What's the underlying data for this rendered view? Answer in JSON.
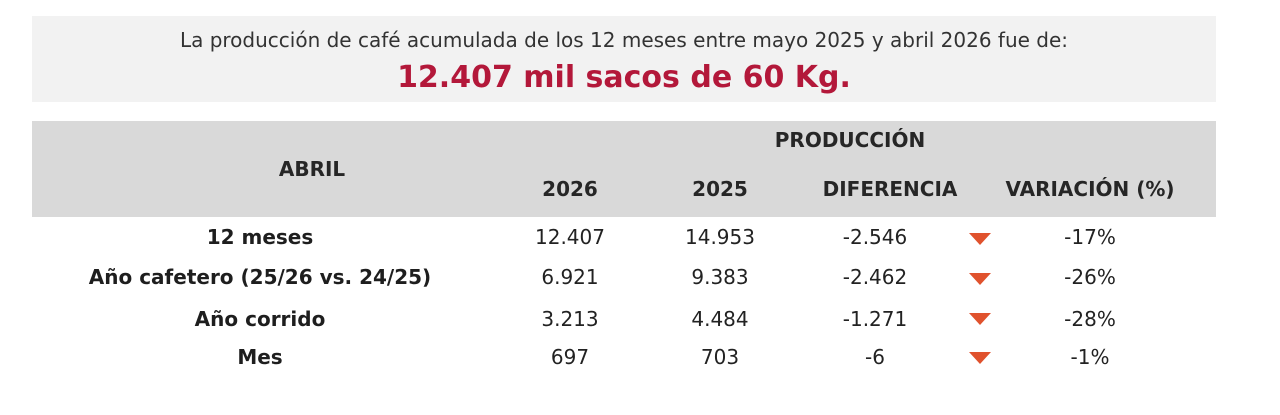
{
  "summary": {
    "subtitle": "La producción de café acumulada de los 12 meses entre mayo 2025 y abril 2026 fue de:",
    "headline": "12.407 mil sacos de 60 Kg."
  },
  "table": {
    "period_header": "ABRIL",
    "group_header": "PRODUCCIÓN",
    "columns": [
      "2026",
      "2025",
      "DIFERENCIA",
      "VARIACIÓN (%)"
    ],
    "trend_icon": "triangle-down-icon",
    "trend_color": "#e0522d",
    "rows": [
      {
        "label": "12 meses",
        "y2026": "12.407",
        "y2025": "14.953",
        "diff": "-2.546",
        "var": "-17%"
      },
      {
        "label": "Año cafetero (25/26 vs. 24/25)",
        "y2026": "6.921",
        "y2025": "9.383",
        "diff": "-2.462",
        "var": "-26%"
      },
      {
        "label": "Año corrido",
        "y2026": "3.213",
        "y2025": "4.484",
        "diff": "-1.271",
        "var": "-28%"
      },
      {
        "label": "Mes",
        "y2026": "697",
        "y2025": "703",
        "diff": "-6",
        "var": "-1%"
      }
    ]
  },
  "colors": {
    "headline": "#b3183a",
    "header_bg": "#d9d9d9",
    "banner_bg": "#f2f2f2"
  }
}
